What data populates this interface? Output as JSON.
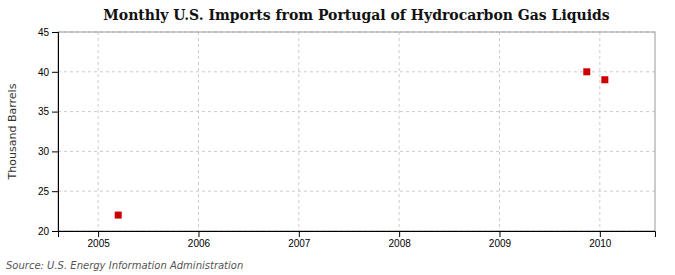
{
  "chart_data": {
    "type": "scatter",
    "title": "Monthly U.S. Imports from Portugal of Hydrocarbon Gas Liquids",
    "ylabel": "Thousand Barrels",
    "annotations": [
      "Source: U.S. Energy Information Administration"
    ],
    "x": [
      2005.2,
      2009.87,
      2010.05
    ],
    "values": [
      22,
      40,
      39
    ],
    "color": "#cc0000",
    "marker": "square",
    "xlim": [
      2004.6,
      2010.55
    ],
    "ylim": [
      20,
      45
    ],
    "xticks": [
      2005,
      2006,
      2007,
      2008,
      2009,
      2010
    ],
    "yticks": [
      20,
      25,
      30,
      35,
      40,
      45
    ],
    "grid": true
  }
}
